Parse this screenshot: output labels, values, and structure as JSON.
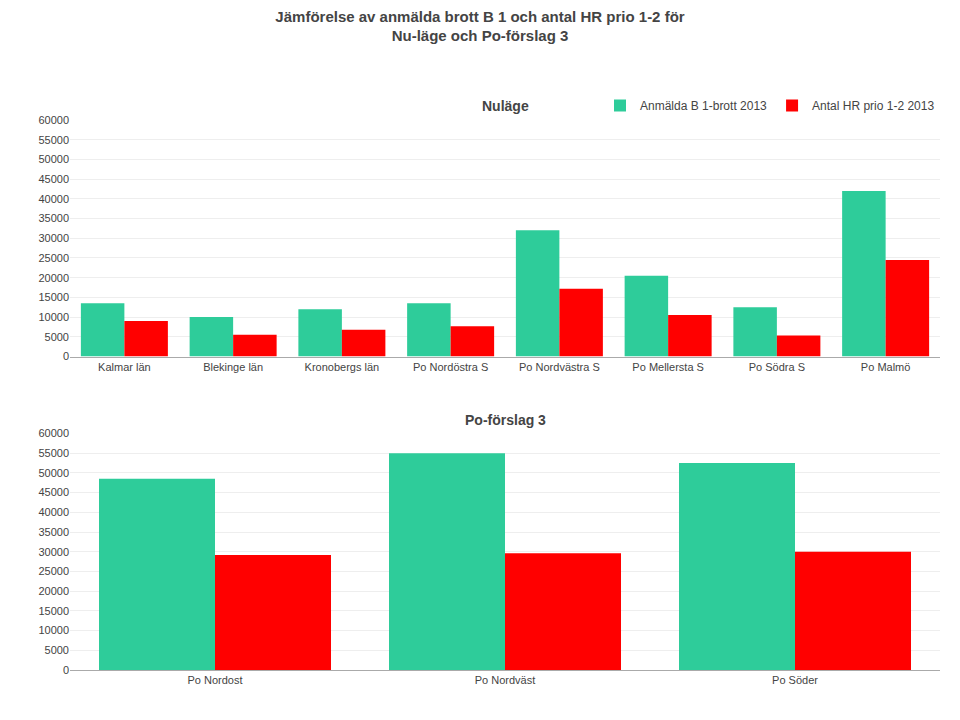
{
  "title": "Jämförelse av anmälda brott B 1 och antal HR prio 1-2 för\nNu-läge och Po-förslag 3",
  "chart_data": [
    {
      "type": "bar",
      "title": "Nuläge",
      "categories": [
        "Kalmar län",
        "Blekinge län",
        "Kronobergs län",
        "Po Nordöstra S",
        "Po Nordvästra S",
        "Po Mellersta S",
        "Po Södra S",
        "Po Malmö"
      ],
      "series": [
        {
          "name": "Anmälda B 1-brott 2013",
          "color": "#2ecc9a",
          "values": [
            13500,
            10000,
            12000,
            13500,
            32000,
            20500,
            12500,
            42000
          ]
        },
        {
          "name": "Antal HR prio 1-2 2013",
          "color": "#ff0000",
          "values": [
            9000,
            5500,
            6800,
            7700,
            17200,
            10500,
            5300,
            24500
          ]
        }
      ],
      "ylim": [
        0,
        60000
      ],
      "yticks": [
        0,
        5000,
        10000,
        15000,
        20000,
        25000,
        30000,
        35000,
        40000,
        45000,
        50000,
        55000,
        60000
      ],
      "grid": true,
      "legend": "upper right"
    },
    {
      "type": "bar",
      "title": "Po-förslag 3",
      "categories": [
        "Po Nordost",
        "Po Nordväst",
        "Po Söder"
      ],
      "series": [
        {
          "name": "Anmälda B 1-brott 2013",
          "color": "#2ecc9a",
          "values": [
            48500,
            55000,
            52500
          ]
        },
        {
          "name": "Antal HR prio 1-2 2013",
          "color": "#ff0000",
          "values": [
            29200,
            29600,
            30000
          ]
        }
      ],
      "ylim": [
        0,
        60000
      ],
      "yticks": [
        0,
        5000,
        10000,
        15000,
        20000,
        25000,
        30000,
        35000,
        40000,
        45000,
        50000,
        55000,
        60000
      ],
      "grid": true
    }
  ]
}
